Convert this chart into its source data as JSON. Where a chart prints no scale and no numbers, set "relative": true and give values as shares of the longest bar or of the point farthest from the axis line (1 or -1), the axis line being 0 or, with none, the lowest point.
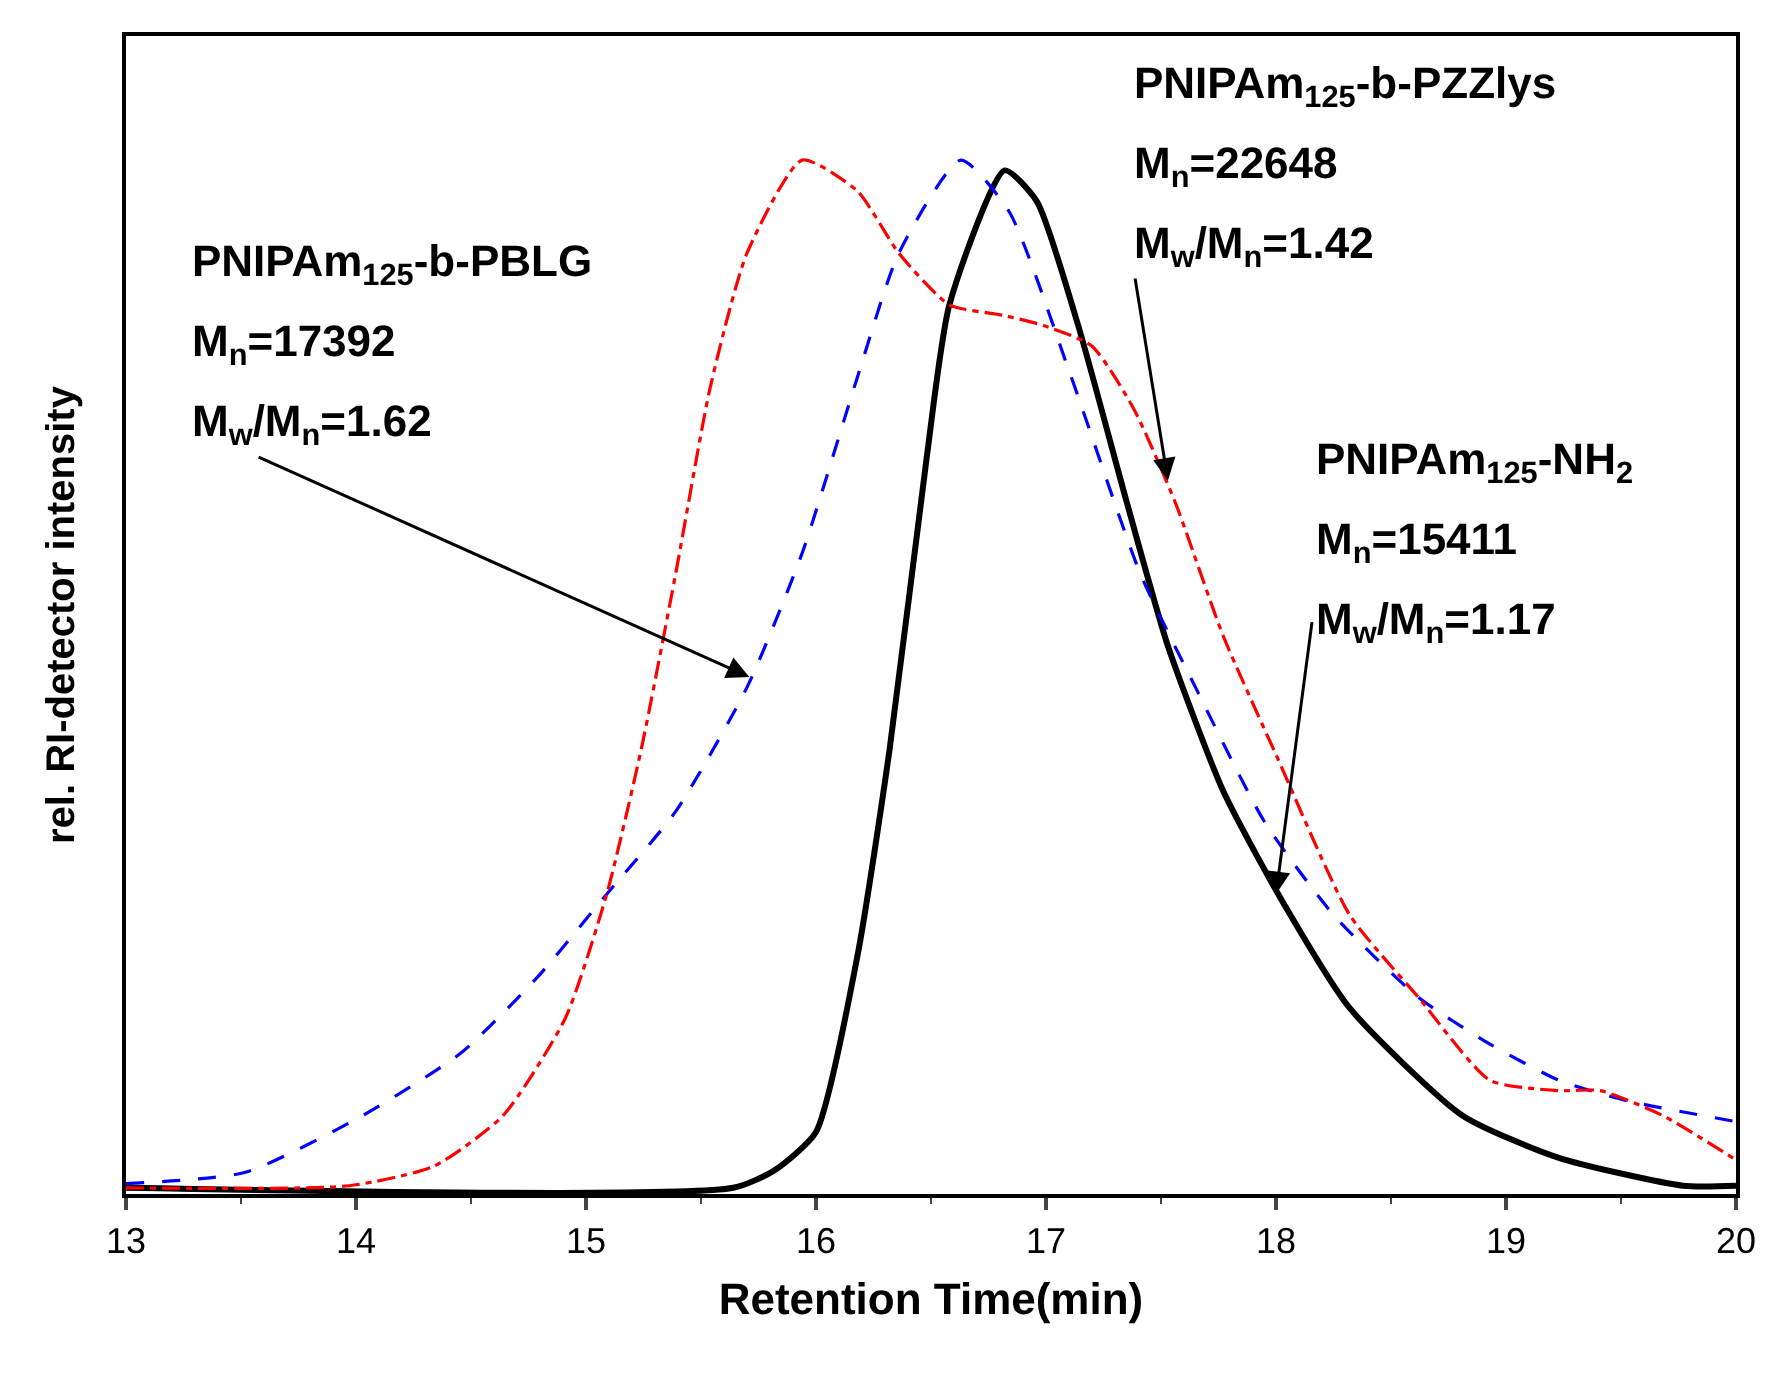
{
  "chart_data": {
    "type": "line",
    "relative": true,
    "xlabel": "Retention Time(min)",
    "ylabel": "rel. RI-detector intensity",
    "xlim": [
      13,
      20
    ],
    "xticks": [
      13,
      14,
      15,
      16,
      17,
      18,
      19,
      20
    ],
    "marker": "none",
    "series": [
      {
        "color": "#000000",
        "line_style": "solid",
        "x": [
          13,
          15.64,
          15.82,
          16.0,
          16.18,
          16.32,
          16.48,
          16.58,
          16.82,
          16.96,
          17.14,
          17.35,
          17.53,
          17.77,
          18.01,
          18.32,
          18.81,
          19.23,
          19.77,
          20
        ],
        "values": [
          0.006,
          0.006,
          0.023,
          0.06,
          0.23,
          0.43,
          0.71,
          0.86,
          0.99,
          0.96,
          0.84,
          0.67,
          0.53,
          0.39,
          0.29,
          0.18,
          0.076,
          0.035,
          0.008,
          0.008
        ]
      },
      {
        "color": "#0000ff",
        "line_style": "dashed",
        "x": [
          13,
          13.52,
          14.03,
          14.46,
          14.79,
          15.09,
          15.39,
          15.7,
          15.94,
          16.18,
          16.36,
          16.63,
          16.84,
          17.11,
          17.41,
          17.65,
          17.95,
          18.25,
          18.62,
          18.93,
          19.23,
          19.53,
          20
        ],
        "values": [
          0.01,
          0.021,
          0.076,
          0.137,
          0.21,
          0.29,
          0.37,
          0.49,
          0.62,
          0.79,
          0.91,
          1.0,
          0.95,
          0.79,
          0.6,
          0.49,
          0.36,
          0.27,
          0.19,
          0.145,
          0.11,
          0.09,
          0.07
        ]
      },
      {
        "color": "#ff0000",
        "line_style": "dashdot",
        "x": [
          13,
          13.97,
          14.34,
          14.64,
          14.91,
          15.09,
          15.24,
          15.39,
          15.54,
          15.7,
          15.94,
          16.18,
          16.36,
          16.58,
          16.81,
          16.99,
          17.2,
          17.38,
          17.56,
          17.77,
          18.01,
          18.32,
          18.62,
          18.93,
          19.23,
          19.41,
          19.68,
          20
        ],
        "values": [
          0.006,
          0.008,
          0.027,
          0.076,
          0.17,
          0.29,
          0.43,
          0.6,
          0.78,
          0.91,
          1.0,
          0.97,
          0.91,
          0.86,
          0.85,
          0.84,
          0.82,
          0.76,
          0.67,
          0.54,
          0.42,
          0.27,
          0.19,
          0.11,
          0.1,
          0.1,
          0.076,
          0.033
        ]
      }
    ],
    "annotations": [
      "PNIPAm$_{125}$-b-PBLG",
      "M$_{n}$=17392",
      {
        "text": "M$_{w}$/M$_{n}$=1.62",
        "x": 15.71,
        "y": 0.5
      },
      "PNIPAm$_{125}$-b-PZZlys",
      "M$_{n}$=22648",
      {
        "text": "M$_{w}$/M$_{n}$=1.42",
        "x": 17.53,
        "y": 0.69
      },
      "PNIPAm$_{125}$-NH$_{2}$",
      "M$_{n}$=15411",
      {
        "text": "M$_{w}$/M$_{n}$=1.17",
        "x": 18.0,
        "y": 0.29
      }
    ]
  }
}
